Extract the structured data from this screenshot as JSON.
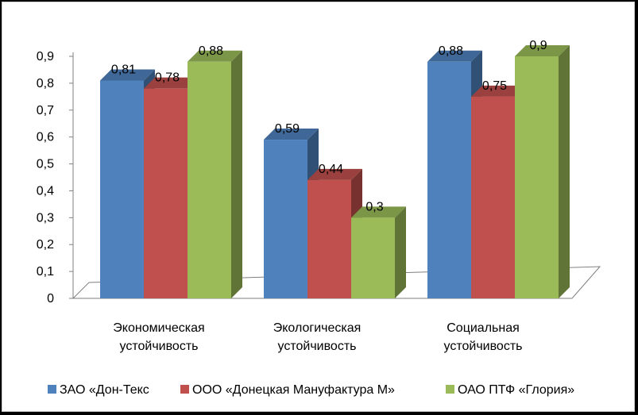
{
  "chart_data": {
    "type": "bar",
    "subtype": "3d-clustered-column",
    "title": "",
    "xlabel": "",
    "ylabel": "",
    "ylim": [
      0,
      0.9
    ],
    "ytick_step": 0.1,
    "yticks": [
      "0",
      "0,1",
      "0,2",
      "0,3",
      "0,4",
      "0,5",
      "0,6",
      "0,7",
      "0,8",
      "0,9"
    ],
    "categories": [
      [
        "Экономическая",
        "устойчивость"
      ],
      [
        "Экологическая",
        "устойчивость"
      ],
      [
        "Социальная",
        "устойчивость"
      ]
    ],
    "series": [
      {
        "name": "ЗАО «Дон-Текс",
        "color": "#4F81BD",
        "values": [
          0.81,
          0.59,
          0.88
        ],
        "labels": [
          "0,81",
          "0,59",
          "0,88"
        ]
      },
      {
        "name": "ООО «Донецкая Мануфактура М»",
        "color": "#C0504D",
        "values": [
          0.78,
          0.44,
          0.75
        ],
        "labels": [
          "0,78",
          "0,44",
          "0,75"
        ]
      },
      {
        "name": "ОАО ПТФ «Глория»",
        "color": "#9BBB59",
        "values": [
          0.88,
          0.3,
          0.9
        ],
        "labels": [
          "0,88",
          "0,3",
          "0,9"
        ]
      }
    ],
    "grid": false,
    "legend_position": "bottom"
  }
}
